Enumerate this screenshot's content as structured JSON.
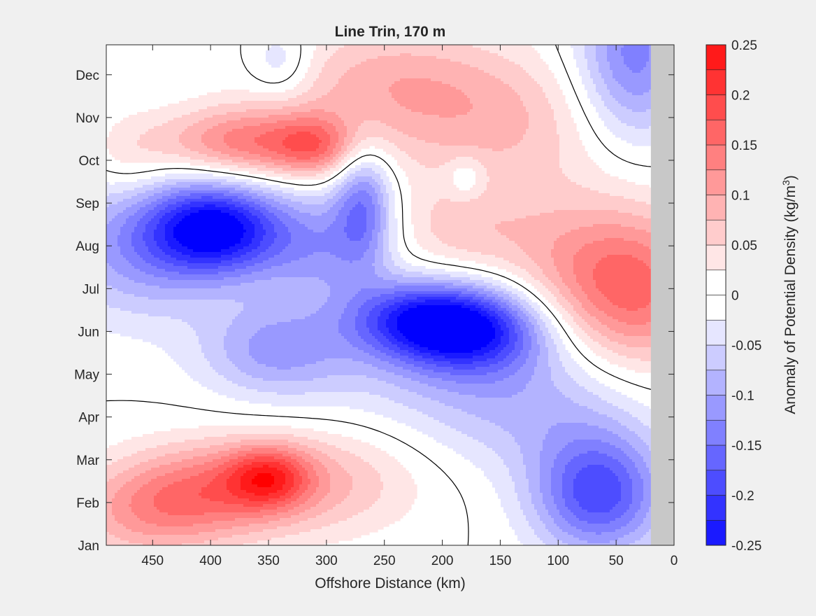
{
  "chart_data": {
    "type": "heatmap",
    "title": "Line Trin, 170 m",
    "xlabel": "Offshore Distance (km)",
    "ylabel": "",
    "xlim": [
      490,
      0
    ],
    "x_reversed": true,
    "xticks": [
      450,
      400,
      350,
      300,
      250,
      200,
      150,
      100,
      50,
      0
    ],
    "ylim": [
      1,
      12.7
    ],
    "yticks": [
      "Jan",
      "Feb",
      "Mar",
      "Apr",
      "May",
      "Jun",
      "Jul",
      "Aug",
      "Sep",
      "Oct",
      "Nov",
      "Dec"
    ],
    "colorbar": {
      "label_main": "Anomaly of Potential Density (kg/m",
      "label_sup": "3",
      "label_close": ")",
      "clim": [
        -0.25,
        0.25
      ],
      "ticks": [
        "0.25",
        "0.2",
        "0.15",
        "0.1",
        "0.05",
        "0",
        "-0.05",
        "-0.1",
        "-0.15",
        "-0.2",
        "-0.25"
      ],
      "levels": [
        -0.25,
        -0.225,
        -0.2,
        -0.175,
        -0.15,
        -0.125,
        -0.1,
        -0.075,
        -0.05,
        -0.025,
        0,
        0.025,
        0.05,
        0.075,
        0.1,
        0.125,
        0.15,
        0.175,
        0.2,
        0.225,
        0.25
      ],
      "colors": [
        "#0000ff",
        "#1a1aff",
        "#3333ff",
        "#4d4dff",
        "#6666ff",
        "#8080ff",
        "#9999ff",
        "#b3b3ff",
        "#ccccff",
        "#e6e6ff",
        "#ffffff",
        "#ffffff",
        "#ffe6e6",
        "#ffcccc",
        "#ffb3b3",
        "#ff9999",
        "#ff8080",
        "#ff6666",
        "#ff4d4d",
        "#ff3333",
        "#ff1a1a",
        "#ff0000"
      ]
    },
    "no_data_color": "#c8c8c8",
    "no_data_x_range": [
      20,
      0
    ],
    "features": [
      {
        "x": 395,
        "y": 8.4,
        "amp": -0.24,
        "sx": 40,
        "sy": 0.75
      },
      {
        "x": 460,
        "y": 8.0,
        "amp": -0.11,
        "sx": 55,
        "sy": 1.2
      },
      {
        "x": 305,
        "y": 8.0,
        "amp": -0.1,
        "sx": 40,
        "sy": 0.9
      },
      {
        "x": 268,
        "y": 9.0,
        "amp": -0.13,
        "sx": 18,
        "sy": 1.0
      },
      {
        "x": 220,
        "y": 6.3,
        "amp": -0.19,
        "sx": 45,
        "sy": 0.65
      },
      {
        "x": 170,
        "y": 6.0,
        "amp": -0.18,
        "sx": 45,
        "sy": 0.7
      },
      {
        "x": 345,
        "y": 5.6,
        "amp": -0.1,
        "sx": 45,
        "sy": 0.8
      },
      {
        "x": 200,
        "y": 5.0,
        "amp": -0.05,
        "sx": 90,
        "sy": 0.9
      },
      {
        "x": 120,
        "y": 4.0,
        "amp": -0.06,
        "sx": 70,
        "sy": 1.0
      },
      {
        "x": 65,
        "y": 2.2,
        "amp": -0.19,
        "sx": 40,
        "sy": 1.0
      },
      {
        "x": 35,
        "y": 12.4,
        "amp": -0.14,
        "sx": 35,
        "sy": 1.4
      },
      {
        "x": 340,
        "y": 12.3,
        "amp": -0.06,
        "sx": 20,
        "sy": 0.6
      },
      {
        "x": 370,
        "y": 10.4,
        "amp": 0.14,
        "sx": 55,
        "sy": 0.6
      },
      {
        "x": 310,
        "y": 10.3,
        "amp": 0.09,
        "sx": 25,
        "sy": 0.5
      },
      {
        "x": 250,
        "y": 11.8,
        "amp": 0.08,
        "sx": 70,
        "sy": 1.0
      },
      {
        "x": 150,
        "y": 10.8,
        "amp": 0.07,
        "sx": 70,
        "sy": 1.2
      },
      {
        "x": 180,
        "y": 8.3,
        "amp": 0.06,
        "sx": 50,
        "sy": 0.8
      },
      {
        "x": 30,
        "y": 7.0,
        "amp": 0.15,
        "sx": 45,
        "sy": 1.3
      },
      {
        "x": 90,
        "y": 7.5,
        "amp": 0.06,
        "sx": 40,
        "sy": 1.2
      },
      {
        "x": 400,
        "y": 2.3,
        "amp": 0.12,
        "sx": 55,
        "sy": 0.8
      },
      {
        "x": 350,
        "y": 2.6,
        "amp": 0.13,
        "sx": 25,
        "sy": 0.5
      },
      {
        "x": 300,
        "y": 2.5,
        "amp": 0.07,
        "sx": 60,
        "sy": 0.9
      },
      {
        "x": 460,
        "y": 1.7,
        "amp": 0.08,
        "sx": 50,
        "sy": 0.8
      },
      {
        "x": 470,
        "y": 10.0,
        "amp": 0.04,
        "sx": 25,
        "sy": 0.7
      },
      {
        "x": 180,
        "y": 9.6,
        "amp": -0.05,
        "sx": 12,
        "sy": 0.35
      }
    ]
  }
}
